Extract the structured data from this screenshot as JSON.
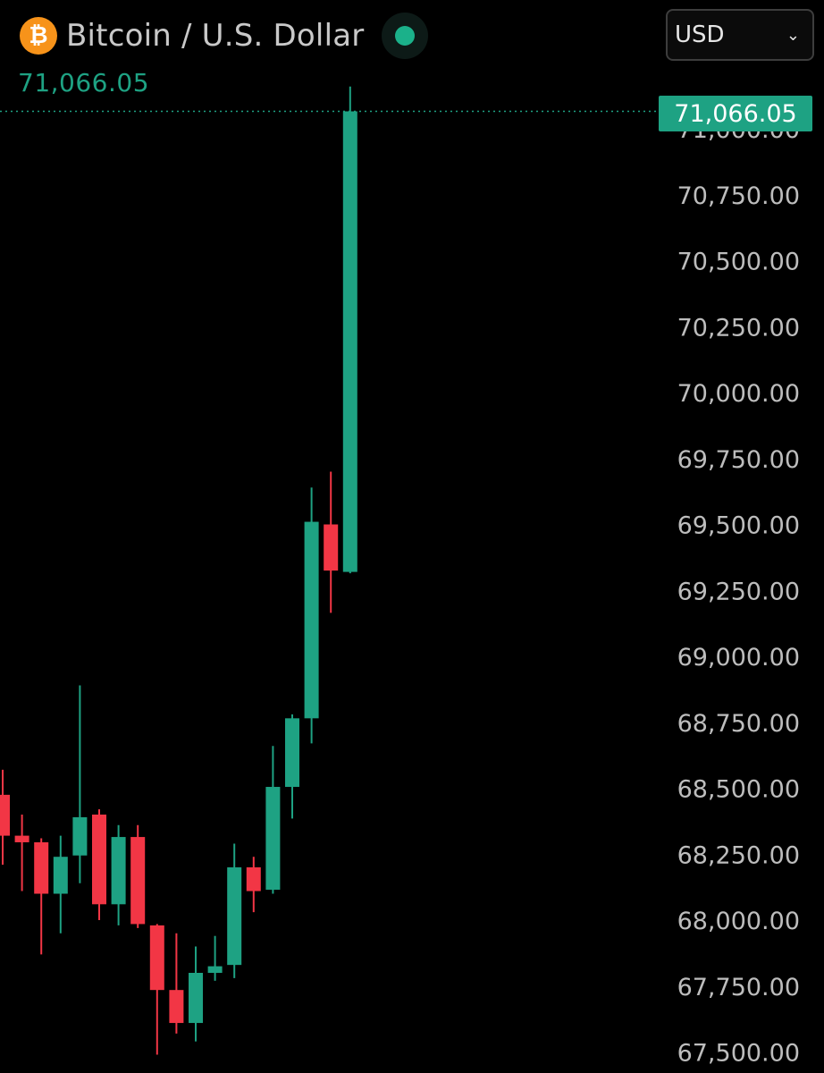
{
  "header": {
    "icon": "bitcoin-icon",
    "icon_glyph": "₿",
    "title": "Bitcoin / U.S. Dollar",
    "status": "market-open-dot-icon",
    "last_price": "71,066.05"
  },
  "currency_select": {
    "value": "USD",
    "chevron": "⌄"
  },
  "price_badge": "71,066.05",
  "colors": {
    "up": "#1ea283",
    "down": "#f23645",
    "background": "#000000",
    "axis_text": "#bdbdbd",
    "icon": "#f7931a"
  },
  "chart_data": {
    "type": "candlestick",
    "y_axis": {
      "position": "right",
      "ticks": [
        {
          "value": 71000,
          "label": "71,000.00"
        },
        {
          "value": 70750,
          "label": "70,750.00"
        },
        {
          "value": 70500,
          "label": "70,500.00"
        },
        {
          "value": 70250,
          "label": "70,250.00"
        },
        {
          "value": 70000,
          "label": "70,000.00"
        },
        {
          "value": 69750,
          "label": "69,750.00"
        },
        {
          "value": 69500,
          "label": "69,500.00"
        },
        {
          "value": 69250,
          "label": "69,250.00"
        },
        {
          "value": 69000,
          "label": "69,000.00"
        },
        {
          "value": 68750,
          "label": "68,750.00"
        },
        {
          "value": 68500,
          "label": "68,500.00"
        },
        {
          "value": 68250,
          "label": "68,250.00"
        },
        {
          "value": 68000,
          "label": "68,000.00"
        },
        {
          "value": 67750,
          "label": "67,750.00"
        },
        {
          "value": 67500,
          "label": "67,500.00"
        }
      ],
      "range": [
        67480,
        71320
      ]
    },
    "current_price": 71066.05,
    "candles": [
      {
        "open": 68475,
        "high": 68570,
        "low": 68210,
        "close": 68320
      },
      {
        "open": 68320,
        "high": 68400,
        "low": 68110,
        "close": 68295
      },
      {
        "open": 68295,
        "high": 68310,
        "low": 67870,
        "close": 68100
      },
      {
        "open": 68100,
        "high": 68320,
        "low": 67950,
        "close": 68240
      },
      {
        "open": 68245,
        "high": 68890,
        "low": 68140,
        "close": 68390
      },
      {
        "open": 68400,
        "high": 68420,
        "low": 68000,
        "close": 68060
      },
      {
        "open": 68060,
        "high": 68360,
        "low": 67980,
        "close": 68315
      },
      {
        "open": 68315,
        "high": 68360,
        "low": 67970,
        "close": 67985
      },
      {
        "open": 67980,
        "high": 67985,
        "low": 67490,
        "close": 67735
      },
      {
        "open": 67735,
        "high": 67950,
        "low": 67570,
        "close": 67610
      },
      {
        "open": 67610,
        "high": 67900,
        "low": 67540,
        "close": 67800
      },
      {
        "open": 67800,
        "high": 67940,
        "low": 67770,
        "close": 67825
      },
      {
        "open": 67830,
        "high": 68290,
        "low": 67780,
        "close": 68200
      },
      {
        "open": 68200,
        "high": 68240,
        "low": 68030,
        "close": 68110
      },
      {
        "open": 68115,
        "high": 68660,
        "low": 68100,
        "close": 68505
      },
      {
        "open": 68505,
        "high": 68780,
        "low": 68385,
        "close": 68765
      },
      {
        "open": 68765,
        "high": 69640,
        "low": 68670,
        "close": 69510
      },
      {
        "open": 69500,
        "high": 69700,
        "low": 69165,
        "close": 69325
      },
      {
        "open": 69320,
        "high": 71160,
        "low": 69315,
        "close": 71066.05
      }
    ]
  }
}
